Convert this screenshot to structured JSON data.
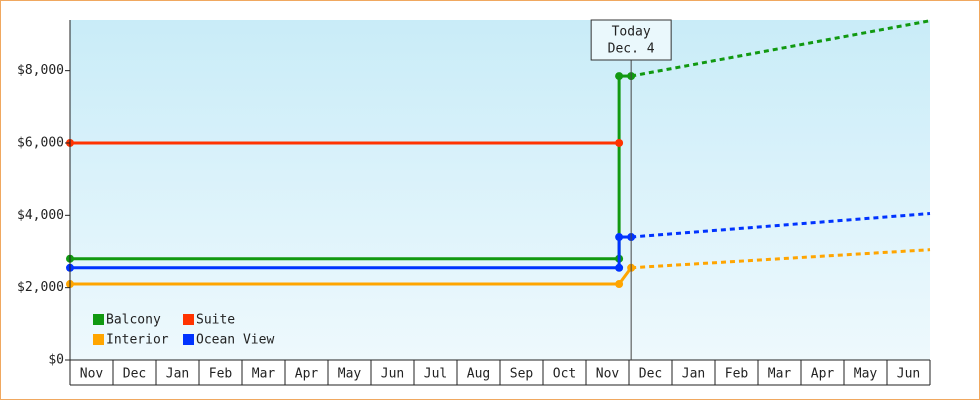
{
  "chart_data": {
    "type": "line",
    "x_categories": [
      "Nov",
      "Dec",
      "Jan",
      "Feb",
      "Mar",
      "Apr",
      "May",
      "Jun",
      "Jul",
      "Aug",
      "Sep",
      "Oct",
      "Nov",
      "Dec",
      "Jan",
      "Feb",
      "Mar",
      "Apr",
      "May",
      "Jun"
    ],
    "xlim": [
      0,
      20
    ],
    "ylim": [
      0,
      9400
    ],
    "yticks": [
      {
        "value": 0,
        "label": "$0"
      },
      {
        "value": 2000,
        "label": "$2,000"
      },
      {
        "value": 4000,
        "label": "$4,000"
      },
      {
        "value": 6000,
        "label": "$6,000"
      },
      {
        "value": 8000,
        "label": "$8,000"
      }
    ],
    "forecast_start": 13.05,
    "annotation": {
      "x": 13.05,
      "lines": [
        "Today",
        "Dec. 4"
      ]
    },
    "series": [
      {
        "name": "Balcony",
        "color": "#119911",
        "x": [
          0,
          12.77,
          12.77,
          13.05,
          20
        ],
        "values": [
          2800,
          2800,
          7850,
          7850,
          9380
        ]
      },
      {
        "name": "Suite",
        "color": "#ff3300",
        "x": [
          0,
          12.77
        ],
        "values": [
          6000,
          6000
        ]
      },
      {
        "name": "Interior",
        "color": "#ffa500",
        "x": [
          0,
          12.77,
          13.05,
          20
        ],
        "values": [
          2100,
          2100,
          2550,
          3050
        ]
      },
      {
        "name": "Ocean View",
        "color": "#0033ff",
        "x": [
          0,
          12.77,
          12.77,
          13.05,
          20
        ],
        "values": [
          2550,
          2550,
          3400,
          3400,
          4050
        ]
      }
    ]
  }
}
